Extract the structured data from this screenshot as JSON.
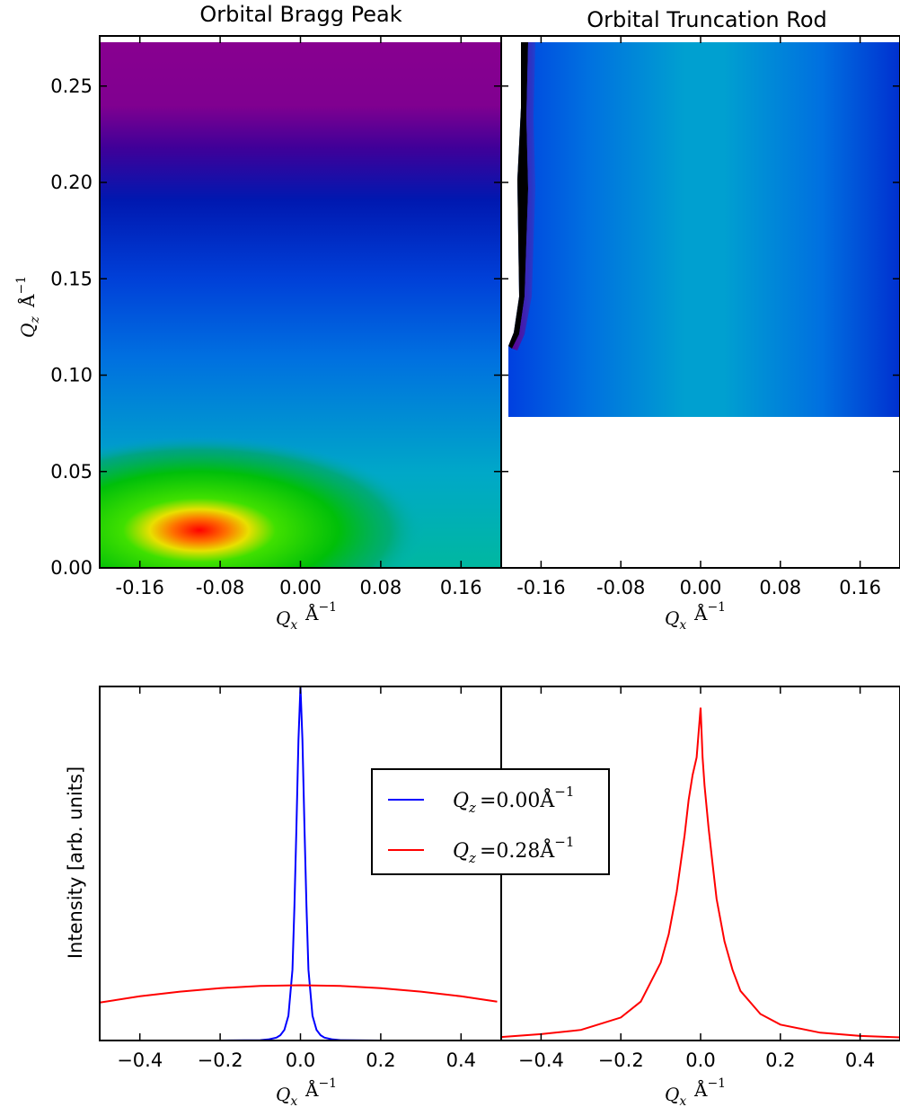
{
  "chart_data": [
    {
      "type": "heatmap",
      "title": "Orbital Bragg Peak",
      "xlabel": "Q_x Å^-1",
      "ylabel": "Q_z Å^-1",
      "xlim": [
        -0.2,
        0.2
      ],
      "ylim": [
        0.0,
        0.276
      ],
      "xticks": [
        "-0.16",
        "-0.08",
        "0.00",
        "0.08",
        "0.16"
      ],
      "xtick_values": [
        -0.16,
        -0.08,
        0.0,
        0.08,
        0.16
      ],
      "yticks": [
        "0.00",
        "0.05",
        "0.10",
        "0.15",
        "0.20",
        "0.25"
      ],
      "ytick_values": [
        0.0,
        0.05,
        0.1,
        0.15,
        0.2,
        0.25
      ],
      "data_extent": {
        "x": [
          -0.2,
          0.2
        ],
        "y": [
          0.0,
          0.276
        ]
      },
      "colormap": [
        "#ff0000",
        "#ffff00",
        "#00d000",
        "#00a0c0",
        "#0050e0",
        "#0010a0",
        "#800090"
      ]
    },
    {
      "type": "heatmap",
      "title": "Orbital Truncation Rod",
      "xlabel": "Q_x Å^-1",
      "ylabel": "",
      "xlim": [
        -0.2,
        0.2
      ],
      "ylim": [
        0.0,
        0.276
      ],
      "xticks": [
        "-0.16",
        "-0.08",
        "0.00",
        "0.08",
        "0.16"
      ],
      "xtick_values": [
        -0.16,
        -0.08,
        0.0,
        0.08,
        0.16
      ],
      "data_extent": {
        "x": [
          -0.19,
          0.2
        ],
        "y": [
          0.08,
          0.276
        ]
      },
      "colormap": [
        "#00cc00",
        "#00a0c0",
        "#0060e0",
        "#0030d0",
        "#800090"
      ]
    },
    {
      "type": "line",
      "title": "",
      "xlabel": "Q_x Å^-1",
      "ylabel": "Intensity [arb. units]",
      "xlim": [
        -0.5,
        0.5
      ],
      "ylim": [
        0.0,
        1.0
      ],
      "xticks": [
        "−0.4",
        "−0.2",
        "0.0",
        "0.2",
        "0.4"
      ],
      "xtick_values": [
        -0.4,
        -0.2,
        0.0,
        0.2,
        0.4
      ],
      "legend": {
        "placement": "center"
      },
      "series": [
        {
          "name": "Q_z = 0.00 Å^-1",
          "color": "#0000ff",
          "x": [
            -0.5,
            -0.2,
            -0.1,
            -0.08,
            -0.06,
            -0.05,
            -0.04,
            -0.03,
            -0.02,
            -0.015,
            -0.01,
            -0.005,
            0.0,
            0.005,
            0.01,
            0.015,
            0.02,
            0.03,
            0.04,
            0.05,
            0.06,
            0.08,
            0.1,
            0.2
          ],
          "y": [
            0.0,
            0.0,
            0.001,
            0.003,
            0.008,
            0.015,
            0.03,
            0.07,
            0.2,
            0.38,
            0.6,
            0.85,
            1.0,
            0.85,
            0.6,
            0.38,
            0.2,
            0.07,
            0.03,
            0.015,
            0.008,
            0.003,
            0.001,
            0.0
          ]
        },
        {
          "name": "Q_z = 0.28 Å^-1",
          "color": "#ff0000",
          "x": [
            -0.5,
            -0.4,
            -0.3,
            -0.2,
            -0.1,
            0.0,
            0.1,
            0.2,
            0.3,
            0.4,
            0.49
          ],
          "y": [
            0.107,
            0.125,
            0.138,
            0.148,
            0.154,
            0.156,
            0.154,
            0.148,
            0.138,
            0.125,
            0.11
          ]
        }
      ]
    },
    {
      "type": "line",
      "title": "",
      "xlabel": "Q_x Å^-1",
      "ylabel": "",
      "xlim": [
        -0.5,
        0.5
      ],
      "ylim": [
        0.0,
        1.0
      ],
      "xticks": [
        "−0.4",
        "−0.2",
        "0.0",
        "0.2",
        "0.4"
      ],
      "xtick_values": [
        -0.4,
        -0.2,
        0.0,
        0.2,
        0.4
      ],
      "series": [
        {
          "name": "",
          "color": "#ff0000",
          "x": [
            -0.5,
            -0.4,
            -0.3,
            -0.2,
            -0.15,
            -0.1,
            -0.08,
            -0.06,
            -0.04,
            -0.03,
            -0.02,
            -0.01,
            0.0,
            0.005,
            0.01,
            0.02,
            0.03,
            0.04,
            0.06,
            0.08,
            0.1,
            0.15,
            0.2,
            0.3,
            0.4,
            0.5
          ],
          "y": [
            0.01,
            0.018,
            0.03,
            0.065,
            0.11,
            0.22,
            0.3,
            0.42,
            0.58,
            0.68,
            0.75,
            0.8,
            0.94,
            0.8,
            0.72,
            0.6,
            0.5,
            0.4,
            0.28,
            0.2,
            0.14,
            0.075,
            0.045,
            0.022,
            0.013,
            0.009
          ]
        }
      ]
    }
  ],
  "legend_entries": [
    {
      "prefix": "Q",
      "sub": "z",
      "eq": "=0.00Å",
      "sup": "−1",
      "color": "#0000ff"
    },
    {
      "prefix": "Q",
      "sub": "z",
      "eq": "=0.28Å",
      "sup": "−1",
      "color": "#ff0000"
    }
  ]
}
